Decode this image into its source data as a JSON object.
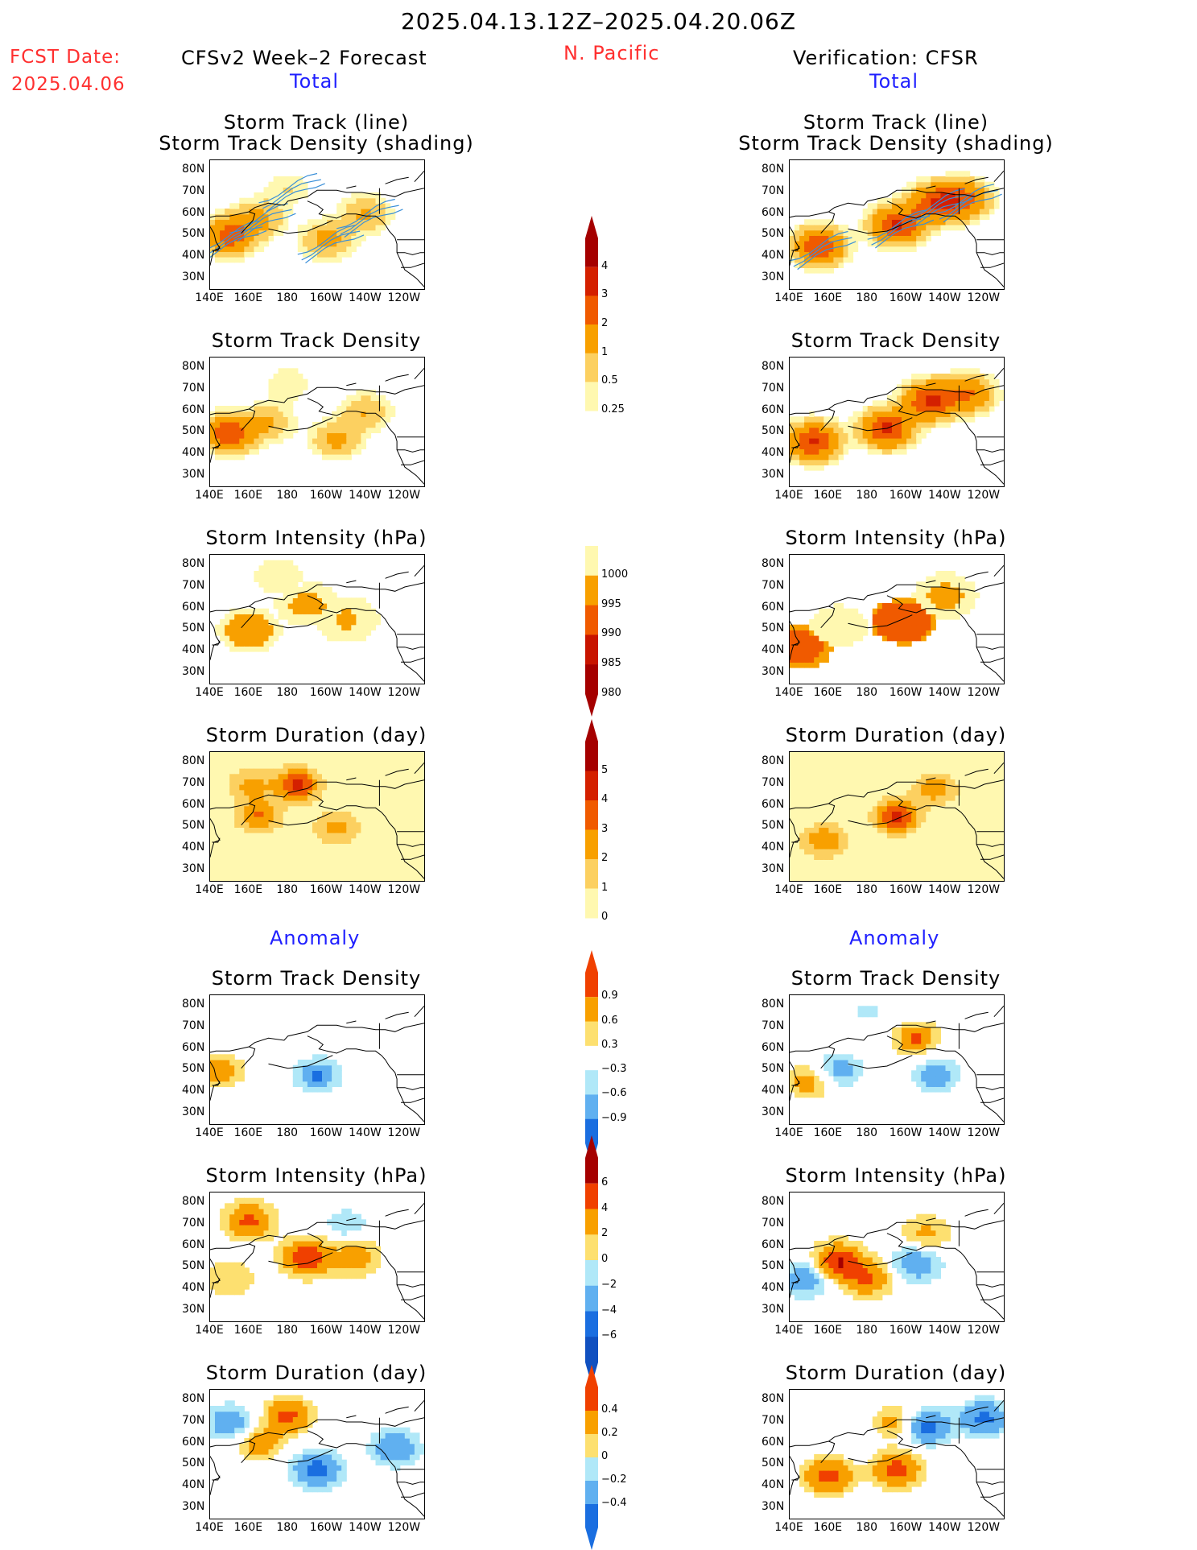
{
  "header": {
    "period": "2025.04.13.12Z–2025.04.20.06Z",
    "fcst_label": "FCST Date:",
    "fcst_date": "2025.04.06",
    "forecast_title": "CFSv2 Week–2 Forecast",
    "region": "N. Pacific",
    "verification_title": "Verification: CFSR"
  },
  "sections": {
    "total": "Total",
    "anomaly": "Anomaly"
  },
  "panel_titles": {
    "track_line": "Storm Track (line)",
    "track_density_shading": "Storm Track Density (shading)",
    "track_density": "Storm Track Density",
    "intensity": "Storm Intensity (hPa)",
    "duration": "Storm Duration (day)"
  },
  "axes": {
    "lon_ticks": [
      "140E",
      "160E",
      "180",
      "160W",
      "140W",
      "120W"
    ],
    "lat_ticks": [
      "80N",
      "70N",
      "60N",
      "50N",
      "40N",
      "30N"
    ]
  },
  "colorbars": {
    "density_total": {
      "labels": [
        "4",
        "3",
        "2",
        "1",
        "0.5",
        "0.25"
      ],
      "colors": [
        "#a50000",
        "#d42000",
        "#f05a00",
        "#f8a000",
        "#fcd060",
        "#fff8b0"
      ]
    },
    "intensity_total": {
      "labels": [
        "1000",
        "995",
        "990",
        "985",
        "980"
      ],
      "colors": [
        "#fff8b0",
        "#f8a000",
        "#f05a00",
        "#c81400",
        "#a50000"
      ]
    },
    "duration_total": {
      "labels": [
        "5",
        "4",
        "3",
        "2",
        "1",
        "0"
      ],
      "colors": [
        "#a50000",
        "#d42000",
        "#f05a00",
        "#f8a000",
        "#fcd060",
        "#fff8b0"
      ]
    },
    "density_anom": {
      "labels": [
        "0.9",
        "0.6",
        "0.3",
        "−0.3",
        "−0.6",
        "−0.9"
      ],
      "colors": [
        "#f04000",
        "#f8a000",
        "#fde070",
        "#ffffff",
        "#b0e8f8",
        "#60b0f0",
        "#1a6ee0"
      ]
    },
    "intensity_anom": {
      "labels": [
        "6",
        "4",
        "2",
        "0",
        "−2",
        "−4",
        "−6"
      ],
      "colors": [
        "#a50000",
        "#f04000",
        "#f8a000",
        "#fde070",
        "#b0e8f8",
        "#60b0f0",
        "#1a6ee0",
        "#1050c0"
      ]
    },
    "duration_anom": {
      "labels": [
        "0.4",
        "0.2",
        "0",
        "−0.2",
        "−0.4"
      ],
      "colors": [
        "#f04000",
        "#f8a000",
        "#fde070",
        "#b0e8f8",
        "#60b0f0",
        "#1a6ee0"
      ]
    }
  },
  "chart_data": {
    "type": "heatmap",
    "lon_range": [
      "140E",
      "110W"
    ],
    "lat_range": [
      "25N",
      "85N"
    ],
    "panels": [
      {
        "id": "fc-track",
        "title_keys": [
          "track_line",
          "track_density_shading"
        ],
        "side": "forecast",
        "field": "density",
        "blobs": [
          [
            150,
            50,
            2.6
          ],
          [
            165,
            58,
            1.2
          ],
          [
            200,
            48,
            1.3
          ],
          [
            220,
            60,
            1.1
          ],
          [
            180,
            72,
            0.5
          ]
        ]
      },
      {
        "id": "vf-track",
        "title_keys": [
          "track_line",
          "track_density_shading"
        ],
        "side": "verification",
        "field": "density",
        "blobs": [
          [
            155,
            45,
            3.0
          ],
          [
            195,
            55,
            3.2
          ],
          [
            215,
            65,
            3.0
          ],
          [
            230,
            67,
            2.2
          ]
        ]
      },
      {
        "id": "fc-density",
        "title_keys": [
          "track_density"
        ],
        "side": "forecast",
        "field": "density",
        "blobs": [
          [
            150,
            50,
            2.8
          ],
          [
            170,
            55,
            1.0
          ],
          [
            205,
            47,
            1.2
          ],
          [
            220,
            60,
            1.0
          ],
          [
            180,
            73,
            0.5
          ]
        ]
      },
      {
        "id": "vf-density",
        "title_keys": [
          "track_density"
        ],
        "side": "verification",
        "field": "density",
        "blobs": [
          [
            152,
            46,
            3.2
          ],
          [
            190,
            52,
            3.3
          ],
          [
            212,
            65,
            3.2
          ],
          [
            232,
            68,
            2.0
          ]
        ]
      },
      {
        "id": "fc-intensity",
        "title_keys": [
          "intensity"
        ],
        "side": "forecast",
        "field": "intensity",
        "blobs": [
          [
            160,
            50,
            992
          ],
          [
            190,
            62,
            993
          ],
          [
            210,
            55,
            994
          ],
          [
            175,
            75,
            997
          ]
        ]
      },
      {
        "id": "vf-intensity",
        "title_keys": [
          "intensity"
        ],
        "side": "verification",
        "field": "intensity",
        "blobs": [
          [
            145,
            42,
            987
          ],
          [
            198,
            54,
            986
          ],
          [
            220,
            66,
            993
          ],
          [
            165,
            52,
            996
          ]
        ]
      },
      {
        "id": "fc-duration",
        "title_keys": [
          "duration"
        ],
        "side": "forecast",
        "field": "duration",
        "blobs": [
          [
            165,
            55,
            3.0
          ],
          [
            185,
            70,
            4.2
          ],
          [
            205,
            50,
            2.5
          ],
          [
            160,
            70,
            2.2
          ]
        ]
      },
      {
        "id": "vf-duration",
        "title_keys": [
          "duration"
        ],
        "side": "verification",
        "field": "duration",
        "blobs": [
          [
            158,
            44,
            3.0
          ],
          [
            195,
            55,
            4.3
          ],
          [
            215,
            68,
            2.6
          ]
        ]
      },
      {
        "id": "fc-density-anom",
        "title_keys": [
          "track_density"
        ],
        "side": "forecast",
        "field": "density_anom",
        "blobs": [
          [
            195,
            48,
            -1.0
          ],
          [
            145,
            50,
            0.9
          ],
          [
            175,
            63,
            0.25
          ],
          [
            240,
            43,
            -0.3
          ]
        ]
      },
      {
        "id": "vf-density-anom",
        "title_keys": [
          "track_density"
        ],
        "side": "verification",
        "field": "density_anom",
        "blobs": [
          [
            165,
            50,
            -0.9
          ],
          [
            150,
            45,
            0.9
          ],
          [
            205,
            65,
            1.0
          ],
          [
            215,
            48,
            -0.9
          ],
          [
            180,
            77,
            -0.35
          ]
        ]
      },
      {
        "id": "fc-intensity-anom",
        "title_keys": [
          "intensity"
        ],
        "side": "forecast",
        "field": "intensity_anom",
        "blobs": [
          [
            190,
            55,
            6.0
          ],
          [
            160,
            72,
            4.5
          ],
          [
            215,
            55,
            3.0
          ],
          [
            150,
            45,
            2.0
          ],
          [
            210,
            70,
            -1.5
          ]
        ]
      },
      {
        "id": "vf-intensity-anom",
        "title_keys": [
          "intensity"
        ],
        "side": "verification",
        "field": "intensity_anom",
        "blobs": [
          [
            165,
            53,
            6.0
          ],
          [
            148,
            45,
            -3.5
          ],
          [
            205,
            52,
            -3.5
          ],
          [
            210,
            66,
            2.5
          ],
          [
            180,
            45,
            4.0
          ]
        ]
      },
      {
        "id": "fc-duration-anom",
        "title_keys": [
          "duration"
        ],
        "side": "forecast",
        "field": "duration_anom",
        "blobs": [
          [
            195,
            48,
            -0.5
          ],
          [
            180,
            73,
            0.45
          ],
          [
            150,
            70,
            -0.35
          ],
          [
            235,
            58,
            -0.4
          ],
          [
            165,
            60,
            0.3
          ]
        ]
      },
      {
        "id": "vf-duration-anom",
        "title_keys": [
          "duration"
        ],
        "side": "verification",
        "field": "duration_anom",
        "blobs": [
          [
            160,
            45,
            0.5
          ],
          [
            195,
            48,
            0.5
          ],
          [
            210,
            68,
            -0.5
          ],
          [
            240,
            72,
            -0.45
          ],
          [
            195,
            70,
            0.3
          ]
        ]
      }
    ]
  }
}
